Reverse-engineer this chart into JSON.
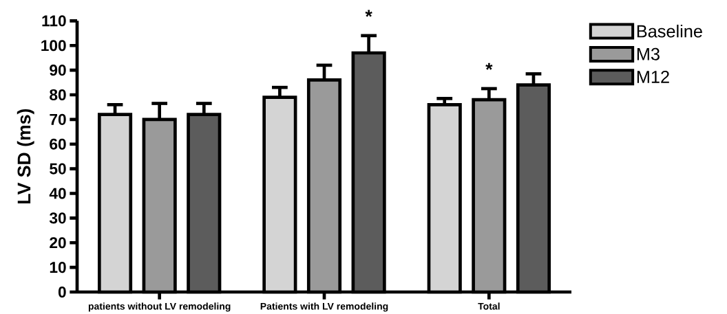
{
  "chart_data": {
    "type": "bar",
    "ylabel": "LV SD (ms)",
    "categories": [
      "patients without LV remodeling",
      "Patients with LV remodeling",
      "Total"
    ],
    "series": [
      {
        "name": "Baseline",
        "color": "#d4d4d4",
        "values": [
          72,
          79,
          76
        ],
        "errors": [
          [
            72,
            76
          ],
          [
            79,
            83
          ],
          [
            76,
            78.5
          ]
        ]
      },
      {
        "name": "M3",
        "color": "#9a9a9a",
        "values": [
          70,
          86,
          78
        ],
        "errors": [
          [
            70,
            76.5
          ],
          [
            86,
            92
          ],
          [
            78,
            82.5
          ]
        ]
      },
      {
        "name": "M12",
        "color": "#5c5c5c",
        "values": [
          72,
          97,
          84
        ],
        "errors": [
          [
            72,
            76.5
          ],
          [
            97,
            104
          ],
          [
            84,
            88.5
          ]
        ]
      }
    ],
    "ylim": [
      0,
      110
    ],
    "yticks": [
      0,
      10,
      20,
      30,
      40,
      50,
      60,
      70,
      80,
      90,
      100,
      110
    ],
    "legend": "top right",
    "grid": false,
    "annotations": [
      "*",
      "*"
    ]
  }
}
